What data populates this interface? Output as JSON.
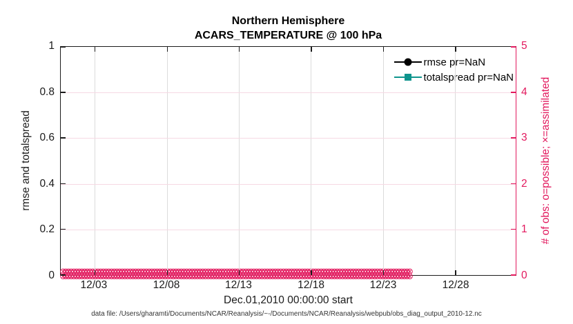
{
  "figure": {
    "title_line1": "Northern Hemisphere",
    "title_line2": "ACARS_TEMPERATURE @ 100 hPa",
    "xlabel": "Dec.01,2010 00:00:00 start",
    "footer": "data file: /Users/gharamti/Documents/NCAR/Reanalysis/~-/Documents/NCAR/Reanalysis/webpub/obs_diag_output_2010-12.nc"
  },
  "colors": {
    "left_axis": "#1a1a1a",
    "right_axis": "#E2185D",
    "vertical_grid": "#DBDBDB",
    "horizontal_grid": "#F6D9E3",
    "rmse": "#000000",
    "totalspread": "#0E948D",
    "obs_markers": "#E2185D"
  },
  "chart_data": {
    "type": "line",
    "title": "Northern Hemisphere",
    "subtitle": "ACARS_TEMPERATURE @ 100 hPa",
    "xlabel": "Dec.01,2010 00:00:00 start",
    "x_tick_labels": [
      "12/03",
      "12/08",
      "12/13",
      "12/18",
      "12/23",
      "12/28"
    ],
    "x_tick_positions_pct": [
      7.4,
      23.3,
      39.1,
      55.0,
      70.8,
      86.7
    ],
    "x_range_note": "daily times from Dec.01,2010 00:00:00 through end of December",
    "left_axis": {
      "label": "rmse and totalspread",
      "ticks": [
        0,
        0.2,
        0.4,
        0.6,
        0.8,
        1
      ],
      "range": [
        0,
        1
      ]
    },
    "right_axis": {
      "label": "# of obs: o=possible; ×=assimilated",
      "ticks": [
        0,
        1,
        2,
        3,
        4,
        5
      ],
      "range": [
        0,
        5
      ]
    },
    "legend": [
      {
        "label": "rmse pr=NaN",
        "marker": "circle",
        "color": "#000000"
      },
      {
        "label": "totalspread pr=NaN",
        "marker": "square",
        "color": "#0E948D"
      }
    ],
    "series": [
      {
        "name": "rmse",
        "axis": "left",
        "values": null,
        "note": "all NaN - no curve drawn"
      },
      {
        "name": "totalspread",
        "axis": "left",
        "values": null,
        "note": "all NaN - no curve drawn"
      },
      {
        "name": "obs possible (o markers)",
        "axis": "right",
        "constant_value": 0,
        "extent": "entire x range"
      },
      {
        "name": "obs assimilated (x markers)",
        "axis": "right",
        "constant_value": 0,
        "extent": "entire x range"
      }
    ],
    "grid": "on",
    "legend_position": "top-right inside, no box",
    "marker_glyph": "⊗",
    "marker_repeat": 130
  }
}
